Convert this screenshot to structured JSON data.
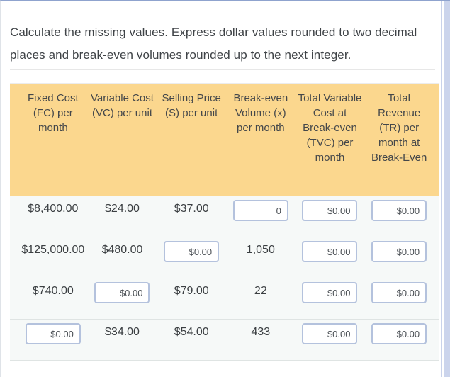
{
  "instructions": "Calculate the missing values. Express dollar values rounded to two decimal places and break-even volumes rounded up to the next integer.",
  "table": {
    "columns": [
      "Fixed Cost (FC) per month",
      "Variable Cost (VC) per unit",
      "Selling Price (S) per unit",
      "Break-even Volume (x) per month",
      "Total Variable Cost at Break-even (TVC) per month",
      "Total Revenue (TR) per month at Break-Even"
    ],
    "rows": [
      {
        "fixed_cost": "$8,400.00",
        "variable_cost": "$24.00",
        "selling_price": "$37.00",
        "breakeven_volume": "0",
        "tvc": "$0.00",
        "total_revenue": "$0.00"
      },
      {
        "fixed_cost": "$125,000.00",
        "variable_cost": "$480.00",
        "selling_price": "$0.00",
        "breakeven_volume": "1,050",
        "tvc": "$0.00",
        "total_revenue": "$0.00"
      },
      {
        "fixed_cost": "$740.00",
        "variable_cost": "$0.00",
        "selling_price": "$79.00",
        "breakeven_volume": "22",
        "tvc": "$0.00",
        "total_revenue": "$0.00"
      },
      {
        "fixed_cost": "$0.00",
        "variable_cost": "$34.00",
        "selling_price": "$54.00",
        "breakeven_volume": "433",
        "tvc": "$0.00",
        "total_revenue": "$0.00"
      }
    ]
  },
  "colors": {
    "header_background": "#fbd78e",
    "row_background": "#f6f9f8",
    "input_border": "#b4c2dd",
    "top_border": "#8fa3ce",
    "scrollbar": "#cbd4ec",
    "text": "#3b3f42"
  }
}
